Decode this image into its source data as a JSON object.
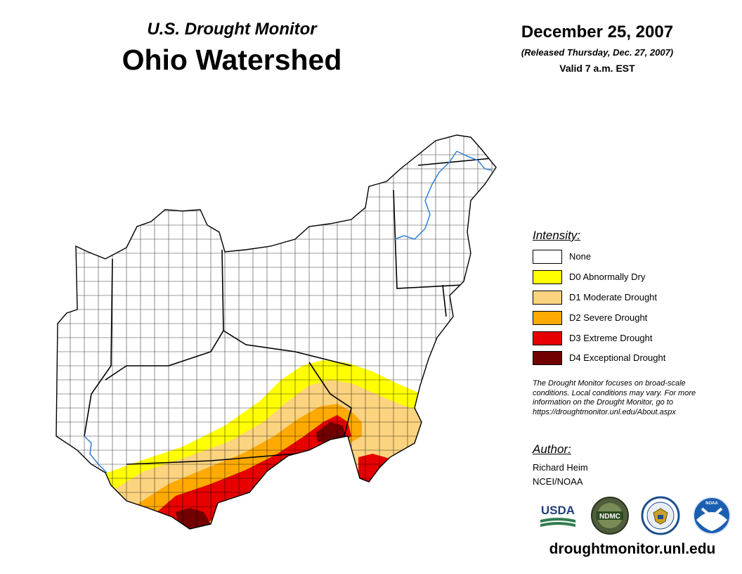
{
  "header": {
    "subtitle": "U.S. Drought Monitor",
    "title": "Ohio Watershed",
    "date": "December 25, 2007",
    "released": "(Released Thursday, Dec. 27, 2007)",
    "valid": "Valid 7 a.m. EST"
  },
  "legend": {
    "title": "Intensity:",
    "items": [
      {
        "label": "None",
        "color": "#ffffff"
      },
      {
        "label": "D0 Abnormally Dry",
        "color": "#ffff00"
      },
      {
        "label": "D1 Moderate Drought",
        "color": "#fcd37f"
      },
      {
        "label": "D2 Severe Drought",
        "color": "#ffaa00"
      },
      {
        "label": "D3 Extreme Drought",
        "color": "#e60000"
      },
      {
        "label": "D4 Exceptional Drought",
        "color": "#730000"
      }
    ]
  },
  "note": "The Drought Monitor focuses on broad-scale conditions. Local conditions may vary. For more information on the Drought Monitor, go to https://droughtmonitor.unl.edu/About.aspx",
  "author": {
    "heading": "Author:",
    "name": "Richard Heim",
    "org": "NCEI/NOAA"
  },
  "logos": {
    "usda": "USDA",
    "ndmc": "NDMC",
    "noaa": "NOAA"
  },
  "footer": {
    "url": "droughtmonitor.unl.edu"
  }
}
